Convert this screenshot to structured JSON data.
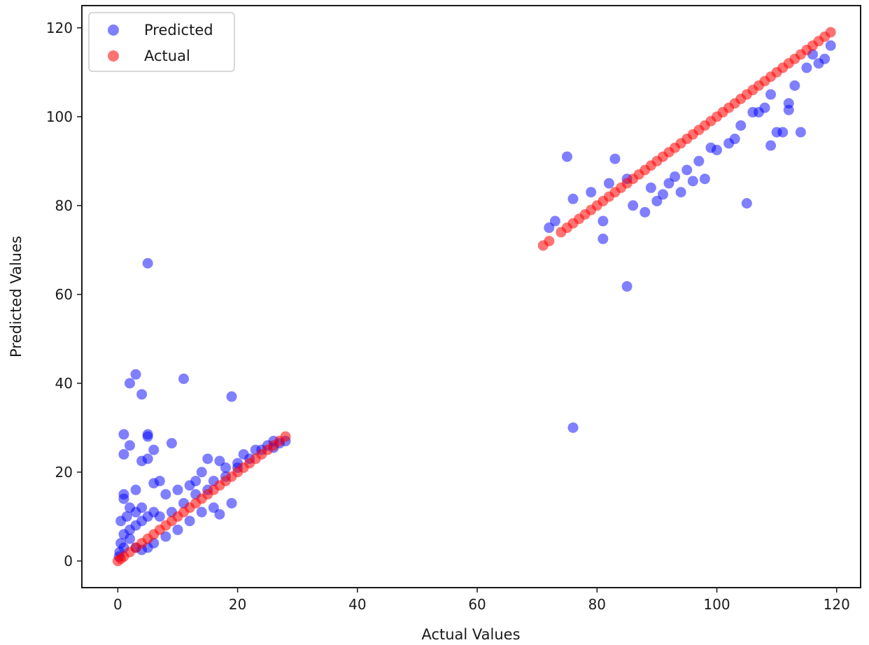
{
  "chart_data": {
    "type": "scatter",
    "title": "",
    "xlabel": "Actual Values",
    "ylabel": "Predicted Values",
    "xlim": [
      -6,
      124
    ],
    "ylim": [
      -6,
      125
    ],
    "x_ticks": [
      0,
      20,
      40,
      60,
      80,
      100,
      120
    ],
    "y_ticks": [
      0,
      20,
      40,
      60,
      80,
      100,
      120
    ],
    "x_tick_labels": [
      "0",
      "20",
      "40",
      "60",
      "80",
      "100",
      "120"
    ],
    "y_tick_labels": [
      "0",
      "20",
      "40",
      "60",
      "80",
      "100",
      "120"
    ],
    "grid": false,
    "legend_position": "top-left",
    "series": [
      {
        "name": "Predicted",
        "color": "#0000ff",
        "alpha": 0.5,
        "points": [
          [
            5,
            67
          ],
          [
            76,
            30
          ],
          [
            85,
            61.8
          ],
          [
            3,
            42
          ],
          [
            2,
            40
          ],
          [
            11,
            41
          ],
          [
            4,
            37.5
          ],
          [
            19,
            37
          ],
          [
            1,
            28.5
          ],
          [
            5,
            28.5
          ],
          [
            5,
            28
          ],
          [
            6,
            25
          ],
          [
            9,
            26.5
          ],
          [
            2,
            26
          ],
          [
            1,
            24
          ],
          [
            4,
            22.5
          ],
          [
            5,
            23
          ],
          [
            75,
            91
          ],
          [
            83,
            90.5
          ],
          [
            105,
            80.5
          ],
          [
            81,
            72.5
          ],
          [
            72,
            75
          ],
          [
            73,
            76.5
          ],
          [
            76,
            81.5
          ],
          [
            79,
            83
          ],
          [
            81,
            76.5
          ],
          [
            88,
            78.5
          ],
          [
            90,
            81
          ],
          [
            91,
            82.5
          ],
          [
            94,
            83
          ],
          [
            96,
            85.5
          ],
          [
            98,
            86
          ],
          [
            95,
            88
          ],
          [
            93,
            86.5
          ],
          [
            86,
            80
          ],
          [
            109,
            93.5
          ],
          [
            111,
            96.5
          ],
          [
            114,
            96.5
          ],
          [
            110,
            96.5
          ],
          [
            112,
            103
          ],
          [
            103,
            95
          ],
          [
            107,
            101
          ],
          [
            109,
            105
          ],
          [
            112,
            101.5
          ],
          [
            115,
            111
          ],
          [
            117,
            112
          ],
          [
            118,
            113
          ],
          [
            100,
            92.5
          ],
          [
            102,
            94
          ],
          [
            99,
            93
          ],
          [
            92,
            85
          ],
          [
            89,
            84
          ],
          [
            85,
            86
          ],
          [
            82,
            85
          ],
          [
            97,
            90
          ],
          [
            104,
            98
          ],
          [
            106,
            101
          ],
          [
            108,
            102
          ],
          [
            113,
            107
          ],
          [
            116,
            114
          ],
          [
            119,
            116
          ],
          [
            1,
            14
          ],
          [
            1,
            15
          ],
          [
            3,
            16
          ],
          [
            6,
            17.5
          ],
          [
            7,
            18
          ],
          [
            2,
            12
          ],
          [
            3,
            11
          ],
          [
            0.5,
            9
          ],
          [
            1.5,
            10
          ],
          [
            4,
            12
          ],
          [
            8,
            15
          ],
          [
            10,
            16
          ],
          [
            12,
            17
          ],
          [
            13,
            18
          ],
          [
            14,
            20
          ],
          [
            15,
            23
          ],
          [
            17,
            22.5
          ],
          [
            18,
            21
          ],
          [
            20,
            22
          ],
          [
            21,
            24
          ],
          [
            22,
            23
          ],
          [
            23,
            25
          ],
          [
            25,
            26
          ],
          [
            26,
            27
          ],
          [
            27,
            26.5
          ],
          [
            17,
            10.5
          ],
          [
            19,
            13
          ],
          [
            16,
            12
          ],
          [
            14,
            11
          ],
          [
            12,
            9
          ],
          [
            10,
            7
          ],
          [
            8,
            5.5
          ],
          [
            6,
            4
          ],
          [
            5,
            3
          ],
          [
            4,
            2.5
          ],
          [
            3,
            3
          ],
          [
            2,
            5
          ],
          [
            1,
            6
          ],
          [
            0.5,
            4
          ],
          [
            0.3,
            2
          ],
          [
            0.2,
            1
          ],
          [
            1,
            3
          ],
          [
            2,
            7
          ],
          [
            3,
            8
          ],
          [
            4,
            9
          ],
          [
            5,
            10
          ],
          [
            6,
            11
          ],
          [
            7,
            10
          ],
          [
            9,
            11
          ],
          [
            11,
            13
          ],
          [
            13,
            15
          ],
          [
            15,
            16
          ],
          [
            16,
            18
          ],
          [
            18,
            19
          ],
          [
            20,
            21
          ],
          [
            24,
            25
          ],
          [
            26,
            25.5
          ],
          [
            28,
            27
          ]
        ]
      },
      {
        "name": "Actual",
        "color": "#ff0000",
        "alpha": 0.55,
        "points": [
          [
            0,
            0
          ],
          [
            0.5,
            0.5
          ],
          [
            1,
            1
          ],
          [
            2,
            2
          ],
          [
            3,
            3
          ],
          [
            4,
            4
          ],
          [
            5,
            5
          ],
          [
            6,
            6
          ],
          [
            7,
            7
          ],
          [
            8,
            8
          ],
          [
            9,
            9
          ],
          [
            10,
            10
          ],
          [
            11,
            11
          ],
          [
            12,
            12
          ],
          [
            13,
            13
          ],
          [
            14,
            14
          ],
          [
            15,
            15
          ],
          [
            16,
            16
          ],
          [
            17,
            17
          ],
          [
            18,
            18
          ],
          [
            19,
            19
          ],
          [
            20,
            20
          ],
          [
            21,
            21
          ],
          [
            22,
            22
          ],
          [
            23,
            23
          ],
          [
            24,
            24
          ],
          [
            25,
            25
          ],
          [
            26,
            26
          ],
          [
            27,
            27
          ],
          [
            28,
            28
          ],
          [
            71,
            71
          ],
          [
            72,
            72
          ],
          [
            74,
            74
          ],
          [
            75,
            75
          ],
          [
            76,
            76
          ],
          [
            77,
            77
          ],
          [
            78,
            78
          ],
          [
            79,
            79
          ],
          [
            80,
            80
          ],
          [
            81,
            81
          ],
          [
            82,
            82
          ],
          [
            83,
            83
          ],
          [
            84,
            84
          ],
          [
            85,
            85
          ],
          [
            86,
            86
          ],
          [
            87,
            87
          ],
          [
            88,
            88
          ],
          [
            89,
            89
          ],
          [
            90,
            90
          ],
          [
            91,
            91
          ],
          [
            92,
            92
          ],
          [
            93,
            93
          ],
          [
            94,
            94
          ],
          [
            95,
            95
          ],
          [
            96,
            96
          ],
          [
            97,
            97
          ],
          [
            98,
            98
          ],
          [
            99,
            99
          ],
          [
            100,
            100
          ],
          [
            101,
            101
          ],
          [
            102,
            102
          ],
          [
            103,
            103
          ],
          [
            104,
            104
          ],
          [
            105,
            105
          ],
          [
            106,
            106
          ],
          [
            107,
            107
          ],
          [
            108,
            108
          ],
          [
            109,
            109
          ],
          [
            110,
            110
          ],
          [
            111,
            111
          ],
          [
            112,
            112
          ],
          [
            113,
            113
          ],
          [
            114,
            114
          ],
          [
            115,
            115
          ],
          [
            116,
            116
          ],
          [
            117,
            117
          ],
          [
            118,
            118
          ],
          [
            119,
            119
          ]
        ]
      }
    ]
  }
}
